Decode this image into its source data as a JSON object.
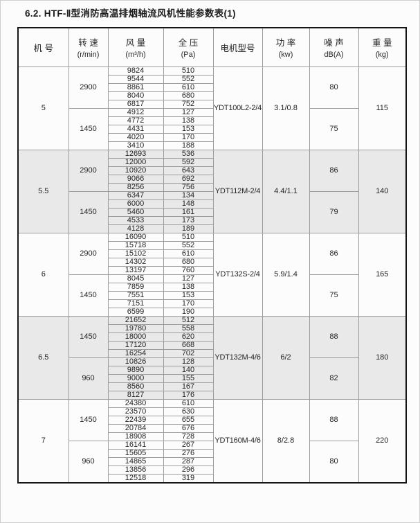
{
  "title": "6.2. HTF-Ⅱ型消防高温排烟轴流风机性能参数表(1)",
  "table": {
    "headers": [
      {
        "key": "machine-no",
        "title": "机 号",
        "unit": ""
      },
      {
        "key": "speed",
        "title": "转 速",
        "unit": "(r/min)"
      },
      {
        "key": "flow",
        "title": "风 量",
        "unit": "(m³/h)"
      },
      {
        "key": "pressure",
        "title": "全 压",
        "unit": "(Pa)"
      },
      {
        "key": "motor-model",
        "title": "电机型号",
        "unit": ""
      },
      {
        "key": "power",
        "title": "功 率",
        "unit": "(kw)"
      },
      {
        "key": "noise",
        "title": "噪 声",
        "unit": "dB(A)"
      },
      {
        "key": "weight",
        "title": "重 量",
        "unit": "(kg)"
      }
    ],
    "sections": [
      {
        "machine_no": "5",
        "motor_model": "YDT100L2-2/4",
        "power": "3.1/0.8",
        "weight": "115",
        "shaded": false,
        "blocks": [
          {
            "speed": "2900",
            "noise": "80",
            "rows": [
              {
                "flow": "9824",
                "pressure": "510"
              },
              {
                "flow": "9544",
                "pressure": "552"
              },
              {
                "flow": "8861",
                "pressure": "610"
              },
              {
                "flow": "8040",
                "pressure": "680"
              },
              {
                "flow": "6817",
                "pressure": "752"
              }
            ]
          },
          {
            "speed": "1450",
            "noise": "75",
            "rows": [
              {
                "flow": "4912",
                "pressure": "127"
              },
              {
                "flow": "4772",
                "pressure": "138"
              },
              {
                "flow": "4431",
                "pressure": "153"
              },
              {
                "flow": "4020",
                "pressure": "170"
              },
              {
                "flow": "3410",
                "pressure": "188"
              }
            ]
          }
        ]
      },
      {
        "machine_no": "5.5",
        "motor_model": "YDT112M-2/4",
        "power": "4.4/1.1",
        "weight": "140",
        "shaded": true,
        "blocks": [
          {
            "speed": "2900",
            "noise": "86",
            "rows": [
              {
                "flow": "12693",
                "pressure": "536"
              },
              {
                "flow": "12000",
                "pressure": "592"
              },
              {
                "flow": "10920",
                "pressure": "643"
              },
              {
                "flow": "9066",
                "pressure": "692"
              },
              {
                "flow": "8256",
                "pressure": "756"
              }
            ]
          },
          {
            "speed": "1450",
            "noise": "79",
            "rows": [
              {
                "flow": "6347",
                "pressure": "134"
              },
              {
                "flow": "6000",
                "pressure": "148"
              },
              {
                "flow": "5460",
                "pressure": "161"
              },
              {
                "flow": "4533",
                "pressure": "173"
              },
              {
                "flow": "4128",
                "pressure": "189"
              }
            ]
          }
        ]
      },
      {
        "machine_no": "6",
        "motor_model": "YDT132S-2/4",
        "power": "5.9/1.4",
        "weight": "165",
        "shaded": false,
        "blocks": [
          {
            "speed": "2900",
            "noise": "86",
            "rows": [
              {
                "flow": "16090",
                "pressure": "510"
              },
              {
                "flow": "15718",
                "pressure": "552"
              },
              {
                "flow": "15102",
                "pressure": "610"
              },
              {
                "flow": "14302",
                "pressure": "680"
              },
              {
                "flow": "13197",
                "pressure": "760"
              }
            ]
          },
          {
            "speed": "1450",
            "noise": "75",
            "rows": [
              {
                "flow": "8045",
                "pressure": "127"
              },
              {
                "flow": "7859",
                "pressure": "138"
              },
              {
                "flow": "7551",
                "pressure": "153"
              },
              {
                "flow": "7151",
                "pressure": "170"
              },
              {
                "flow": "6599",
                "pressure": "190"
              }
            ]
          }
        ]
      },
      {
        "machine_no": "6.5",
        "motor_model": "YDT132M-4/6",
        "power": "6/2",
        "weight": "180",
        "shaded": true,
        "blocks": [
          {
            "speed": "1450",
            "noise": "88",
            "rows": [
              {
                "flow": "21652",
                "pressure": "512"
              },
              {
                "flow": "19780",
                "pressure": "558"
              },
              {
                "flow": "18000",
                "pressure": "620"
              },
              {
                "flow": "17120",
                "pressure": "668"
              },
              {
                "flow": "16254",
                "pressure": "702"
              }
            ]
          },
          {
            "speed": "960",
            "noise": "82",
            "rows": [
              {
                "flow": "10826",
                "pressure": "128"
              },
              {
                "flow": "9890",
                "pressure": "140"
              },
              {
                "flow": "9000",
                "pressure": "155"
              },
              {
                "flow": "8560",
                "pressure": "167"
              },
              {
                "flow": "8127",
                "pressure": "176"
              }
            ]
          }
        ]
      },
      {
        "machine_no": "7",
        "motor_model": "YDT160M-4/6",
        "power": "8/2.8",
        "weight": "220",
        "shaded": false,
        "blocks": [
          {
            "speed": "1450",
            "noise": "88",
            "rows": [
              {
                "flow": "24380",
                "pressure": "610"
              },
              {
                "flow": "23570",
                "pressure": "630"
              },
              {
                "flow": "22439",
                "pressure": "655"
              },
              {
                "flow": "20784",
                "pressure": "676"
              },
              {
                "flow": "18908",
                "pressure": "728"
              }
            ]
          },
          {
            "speed": "960",
            "noise": "80",
            "rows": [
              {
                "flow": "16141",
                "pressure": "267"
              },
              {
                "flow": "15605",
                "pressure": "276"
              },
              {
                "flow": "14865",
                "pressure": "287"
              },
              {
                "flow": "13856",
                "pressure": "296"
              },
              {
                "flow": "12518",
                "pressure": "319"
              }
            ]
          }
        ]
      }
    ]
  }
}
